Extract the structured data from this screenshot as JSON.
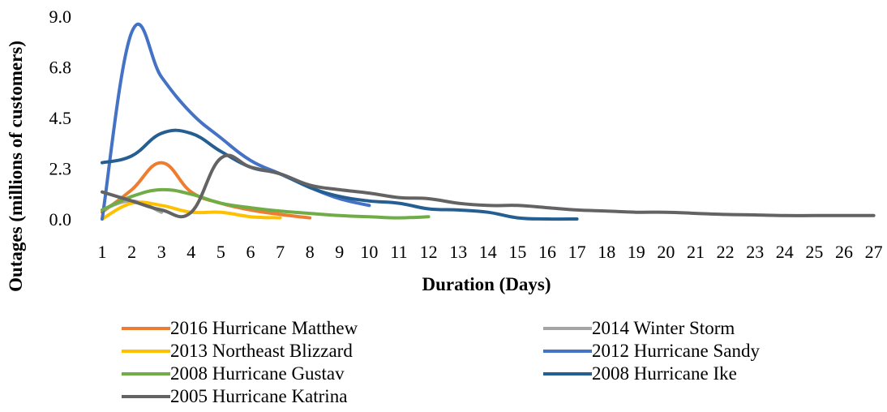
{
  "chart_data": {
    "type": "line",
    "xlabel": "Duration (Days)",
    "ylabel": "Outages (millions of customers)",
    "ylim": [
      0,
      9
    ],
    "yticks": [
      "0.0",
      "2.3",
      "4.5",
      "6.8",
      "9.0"
    ],
    "ytick_values": [
      0,
      2.25,
      4.5,
      6.75,
      9.0
    ],
    "categories": [
      "1",
      "2",
      "3",
      "4",
      "5",
      "6",
      "7",
      "8",
      "9",
      "10",
      "11",
      "12",
      "13",
      "14",
      "15",
      "16",
      "17",
      "18",
      "19",
      "20",
      "21",
      "22",
      "23",
      "24",
      "25",
      "26",
      "27"
    ],
    "grid": false,
    "legend_position": "bottom",
    "series": [
      {
        "name": "2016 Hurricane Matthew",
        "color": "#ED7D31",
        "x": [
          1,
          2,
          3,
          4,
          5,
          6,
          7,
          8
        ],
        "y": [
          0.3,
          1.3,
          2.5,
          1.2,
          0.7,
          0.4,
          0.2,
          0.05
        ]
      },
      {
        "name": "2014 Winter Storm",
        "color": "#A5A5A5",
        "x": [
          1,
          2,
          3
        ],
        "y": [
          0.4,
          0.8,
          0.3
        ]
      },
      {
        "name": "2013 Northeast Blizzard",
        "color": "#FFC000",
        "x": [
          1,
          2,
          3,
          4,
          5,
          6,
          7
        ],
        "y": [
          0.0,
          0.7,
          0.6,
          0.3,
          0.3,
          0.1,
          0.05
        ]
      },
      {
        "name": "2012 Hurricane Sandy",
        "color": "#4472C4",
        "x": [
          1,
          2,
          3,
          4,
          5,
          6,
          7,
          8,
          9,
          10
        ],
        "y": [
          0.0,
          8.3,
          6.3,
          4.7,
          3.6,
          2.6,
          2.0,
          1.4,
          0.9,
          0.6
        ]
      },
      {
        "name": "2008 Hurricane Gustav",
        "color": "#70AD47",
        "x": [
          1,
          2,
          3,
          4,
          5,
          6,
          7,
          8,
          9,
          10,
          11,
          12
        ],
        "y": [
          0.4,
          1.0,
          1.3,
          1.1,
          0.7,
          0.5,
          0.35,
          0.25,
          0.15,
          0.1,
          0.05,
          0.1
        ]
      },
      {
        "name": "2008 Hurricane Ike",
        "color": "#255E91",
        "x": [
          1,
          2,
          3,
          4,
          5,
          6,
          7,
          8,
          9,
          10,
          11,
          12,
          13,
          14,
          15,
          16,
          17
        ],
        "y": [
          2.5,
          2.8,
          3.8,
          3.8,
          3.0,
          2.3,
          2.0,
          1.4,
          1.0,
          0.8,
          0.7,
          0.45,
          0.4,
          0.3,
          0.05,
          0.0,
          0.0
        ]
      },
      {
        "name": "2005 Hurricane Katrina",
        "color": "#636363",
        "x": [
          1,
          2,
          3,
          4,
          5,
          6,
          7,
          8,
          9,
          10,
          11,
          12,
          13,
          14,
          15,
          16,
          17,
          18,
          19,
          20,
          21,
          22,
          23,
          24,
          25,
          26,
          27
        ],
        "y": [
          1.2,
          0.8,
          0.4,
          0.3,
          2.7,
          2.3,
          2.0,
          1.5,
          1.3,
          1.15,
          0.95,
          0.9,
          0.7,
          0.6,
          0.6,
          0.5,
          0.4,
          0.35,
          0.3,
          0.3,
          0.25,
          0.2,
          0.18,
          0.15,
          0.15,
          0.15,
          0.15
        ]
      }
    ]
  }
}
